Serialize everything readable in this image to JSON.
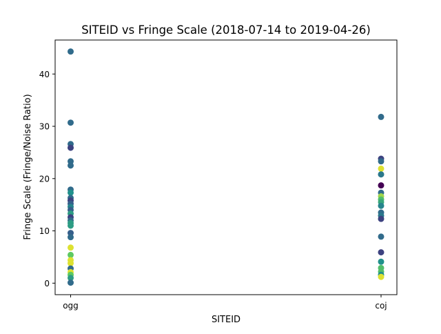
{
  "chart_data": {
    "type": "scatter",
    "title": "SITEID vs Fringe Scale (2018-07-14 to 2019-04-26)",
    "xlabel": "SITEID",
    "ylabel": "Fringe Scale (Fringe/Noise Ratio)",
    "categories": [
      "ogg",
      "coj"
    ],
    "ylim": [
      -2.2,
      46.5
    ],
    "yticks": [
      0,
      10,
      20,
      30,
      40
    ],
    "grid": false,
    "legend": "none",
    "colormap": "viridis",
    "points": [
      {
        "x": "ogg",
        "y": 44.3,
        "c": 0.35
      },
      {
        "x": "ogg",
        "y": 30.7,
        "c": 0.35
      },
      {
        "x": "ogg",
        "y": 26.6,
        "c": 0.35
      },
      {
        "x": "ogg",
        "y": 25.9,
        "c": 0.2
      },
      {
        "x": "ogg",
        "y": 23.3,
        "c": 0.35
      },
      {
        "x": "ogg",
        "y": 22.5,
        "c": 0.35
      },
      {
        "x": "ogg",
        "y": 17.9,
        "c": 0.35
      },
      {
        "x": "ogg",
        "y": 17.3,
        "c": 0.5
      },
      {
        "x": "ogg",
        "y": 16.3,
        "c": 0.35
      },
      {
        "x": "ogg",
        "y": 15.8,
        "c": 0.2
      },
      {
        "x": "ogg",
        "y": 15.2,
        "c": 0.3
      },
      {
        "x": "ogg",
        "y": 14.6,
        "c": 0.45
      },
      {
        "x": "ogg",
        "y": 14.0,
        "c": 0.3
      },
      {
        "x": "ogg",
        "y": 13.3,
        "c": 0.55
      },
      {
        "x": "ogg",
        "y": 12.6,
        "c": 0.2
      },
      {
        "x": "ogg",
        "y": 12.0,
        "c": 0.35
      },
      {
        "x": "ogg",
        "y": 11.5,
        "c": 0.55
      },
      {
        "x": "ogg",
        "y": 11.0,
        "c": 0.55
      },
      {
        "x": "ogg",
        "y": 9.6,
        "c": 0.3
      },
      {
        "x": "ogg",
        "y": 8.8,
        "c": 0.35
      },
      {
        "x": "ogg",
        "y": 6.8,
        "c": 0.95
      },
      {
        "x": "ogg",
        "y": 5.4,
        "c": 0.75
      },
      {
        "x": "ogg",
        "y": 4.4,
        "c": 0.95
      },
      {
        "x": "ogg",
        "y": 3.8,
        "c": 0.95
      },
      {
        "x": "ogg",
        "y": 2.8,
        "c": 0.35
      },
      {
        "x": "ogg",
        "y": 2.1,
        "c": 0.95
      },
      {
        "x": "ogg",
        "y": 1.6,
        "c": 0.75
      },
      {
        "x": "ogg",
        "y": 1.0,
        "c": 0.55
      },
      {
        "x": "ogg",
        "y": 0.1,
        "c": 0.35
      },
      {
        "x": "coj",
        "y": 31.8,
        "c": 0.35
      },
      {
        "x": "coj",
        "y": 23.8,
        "c": 0.2
      },
      {
        "x": "coj",
        "y": 23.3,
        "c": 0.35
      },
      {
        "x": "coj",
        "y": 21.9,
        "c": 0.95
      },
      {
        "x": "coj",
        "y": 20.8,
        "c": 0.4
      },
      {
        "x": "coj",
        "y": 18.7,
        "c": 0.0
      },
      {
        "x": "coj",
        "y": 17.3,
        "c": 0.35
      },
      {
        "x": "coj",
        "y": 16.6,
        "c": 0.85
      },
      {
        "x": "coj",
        "y": 16.0,
        "c": 0.7
      },
      {
        "x": "coj",
        "y": 15.5,
        "c": 0.6
      },
      {
        "x": "coj",
        "y": 14.8,
        "c": 0.45
      },
      {
        "x": "coj",
        "y": 13.5,
        "c": 0.35
      },
      {
        "x": "coj",
        "y": 12.9,
        "c": 0.4
      },
      {
        "x": "coj",
        "y": 12.3,
        "c": 0.2
      },
      {
        "x": "coj",
        "y": 8.9,
        "c": 0.35
      },
      {
        "x": "coj",
        "y": 5.9,
        "c": 0.2
      },
      {
        "x": "coj",
        "y": 4.1,
        "c": 0.5
      },
      {
        "x": "coj",
        "y": 2.9,
        "c": 0.7
      },
      {
        "x": "coj",
        "y": 2.2,
        "c": 0.7
      },
      {
        "x": "coj",
        "y": 1.6,
        "c": 0.5
      },
      {
        "x": "coj",
        "y": 1.2,
        "c": 0.95
      }
    ]
  }
}
